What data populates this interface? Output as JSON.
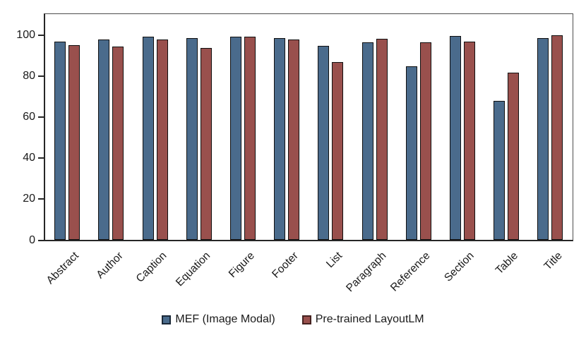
{
  "chart_data": {
    "type": "bar",
    "title": "",
    "xlabel": "",
    "ylabel": "",
    "categories": [
      "Abstract",
      "Author",
      "Caption",
      "Equation",
      "Figure",
      "Footer",
      "List",
      "Paragraph",
      "Reference",
      "Section",
      "Table",
      "Title"
    ],
    "series": [
      {
        "name": "MEF (Image Modal)",
        "color": "#4a6b8c",
        "border_color": "#0f0f0f",
        "marker_border": "#1b2838",
        "values": [
          96.9,
          97.7,
          99.2,
          98.5,
          99.2,
          98.5,
          94.7,
          96.5,
          84.7,
          99.6,
          67.7,
          98.4
        ]
      },
      {
        "name": "Pre-trained LayoutLM",
        "color": "#99504d",
        "border_color": "#0f0f0f",
        "marker_border": "#452220",
        "values": [
          95.2,
          94.2,
          97.7,
          93.5,
          99.3,
          97.9,
          86.9,
          98.3,
          96.3,
          96.8,
          81.6,
          100.0
        ]
      }
    ],
    "ylim": [
      0,
      100
    ],
    "axis_max_internal": 110,
    "yticks": [
      0,
      20,
      40,
      60,
      80,
      100
    ],
    "grid": false,
    "legend_position": "bottom"
  }
}
